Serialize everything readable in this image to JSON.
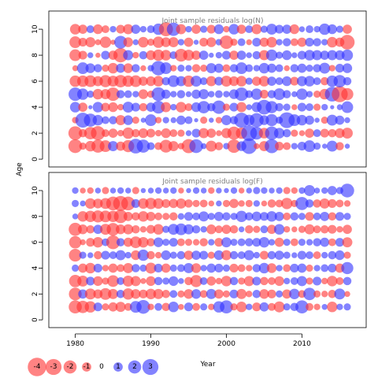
{
  "chart_data": {
    "type": "scatter",
    "subtype": "bubble-residuals",
    "xlabel": "Year",
    "ylabel": "Age",
    "xlim": [
      1976.5,
      2018.5
    ],
    "ylim": [
      -0.6,
      11.4
    ],
    "x_ticks": [
      1980,
      1990,
      2000,
      2010
    ],
    "y_ticks": [
      0,
      2,
      4,
      6,
      8,
      10
    ],
    "years": [
      1980,
      1981,
      1982,
      1983,
      1984,
      1985,
      1986,
      1987,
      1988,
      1989,
      1990,
      1991,
      1992,
      1993,
      1994,
      1995,
      1996,
      1997,
      1998,
      1999,
      2000,
      2001,
      2002,
      2003,
      2004,
      2005,
      2006,
      2007,
      2008,
      2009,
      2010,
      2011,
      2012,
      2013,
      2014,
      2015,
      2016
    ],
    "ages": [
      1,
      2,
      3,
      4,
      5,
      6,
      7,
      8,
      9,
      10
    ],
    "colors": {
      "negative": "#ff3030",
      "positive": "#3030ff",
      "opacity": 0.6
    },
    "legend": {
      "placement": "bottom-left",
      "items": [
        {
          "label": "-4",
          "value": -4
        },
        {
          "label": "-3",
          "value": -3
        },
        {
          "label": "-2",
          "value": -2
        },
        {
          "label": "-1",
          "value": -1
        },
        {
          "label": "0",
          "value": 0
        },
        {
          "label": "1",
          "value": 1
        },
        {
          "label": "2",
          "value": 2
        },
        {
          "label": "3",
          "value": 3
        }
      ]
    },
    "panels": [
      {
        "title": "Joint sample residuals log(N)",
        "residuals_by_age": [
          [
            -2.2,
            -0.6,
            -1.3,
            -2.0,
            -1.6,
            1.2,
            -1.0,
            -1.7,
            2.5,
            2.0,
            0.7,
            -0.7,
            -1.9,
            -1.2,
            -0.5,
            -2.3,
            2.2,
            0.4,
            -1.4,
            -0.8,
            0.5,
            -2.1,
            1.1,
            2.8,
            -0.4,
            -1.2,
            2.3,
            -0.9,
            -0.7,
            0.5,
            0.9,
            1.6,
            0.6,
            0.3,
            1.4,
            -0.8,
            0.3
          ],
          [
            -2.2,
            -0.8,
            -1.8,
            -2.3,
            -0.7,
            -1.0,
            -0.5,
            -1.5,
            -0.8,
            -1.1,
            -0.9,
            -0.5,
            -1.1,
            -0.7,
            -0.6,
            0.4,
            0.9,
            -1.2,
            -1.0,
            -0.4,
            -1.2,
            -2.0,
            -1.5,
            2.9,
            1.9,
            -1.3,
            2.1,
            1.3,
            0.8,
            -0.6,
            -0.4,
            -1.0,
            0.7,
            -0.9,
            -0.8,
            -1.1,
            -1.4
          ],
          [
            -0.5,
            2.6,
            2.0,
            1.3,
            0.7,
            0.8,
            -1.2,
            1.1,
            -0.6,
            0.3,
            1.6,
            -0.5,
            0.5,
            0.4,
            1.0,
            0.7,
            0.2,
            -0.6,
            0.3,
            -0.5,
            1.2,
            0.8,
            2.6,
            1.4,
            2.3,
            1.1,
            1.7,
            0.6,
            2.9,
            1.6,
            1.3,
            1.0,
            0.3,
            -0.6,
            1.4,
            1.0,
            0.4
          ],
          [
            1.3,
            -1.0,
            0.2,
            1.3,
            -0.9,
            -1.1,
            -0.5,
            1.4,
            0.9,
            -0.8,
            1.0,
            1.9,
            -1.2,
            0.5,
            -1.3,
            -0.7,
            1.1,
            1.8,
            0.8,
            2.1,
            -0.6,
            0.9,
            -1.2,
            0.4,
            1.2,
            2.5,
            1.7,
            0.8,
            0.6,
            -0.4,
            0.9,
            0.7,
            -0.6,
            0.5,
            0.2,
            0.4,
            1.6
          ],
          [
            2.1,
            1.5,
            0.6,
            -1.3,
            -1.2,
            -2.1,
            0.8,
            0.7,
            0.5,
            -1.1,
            -0.6,
            2.2,
            1.0,
            0.5,
            0.8,
            0.4,
            1.0,
            1.2,
            0.5,
            0.7,
            0.5,
            1.1,
            2.1,
            0.7,
            1.5,
            -0.9,
            0.8,
            1.6,
            0.8,
            0.4,
            1.5,
            0.5,
            -0.6,
            -1.3,
            2.5,
            -3.0,
            -1.7
          ],
          [
            -1.5,
            -1.5,
            -1.6,
            -1.2,
            -1.7,
            -1.4,
            -1.8,
            -1.5,
            -1.6,
            -1.0,
            -1.1,
            -1.3,
            0.8,
            1.6,
            1.2,
            -1.5,
            1.4,
            0.7,
            -1.2,
            0.9,
            -1.4,
            -1.1,
            -1.3,
            0.6,
            -1.0,
            -1.3,
            1.0,
            0.7,
            1.1,
            -0.9,
            1.2,
            1.3,
            0.7,
            -0.8,
            1.5,
            1.8,
            0.8
          ],
          [
            -0.4,
            1.6,
            1.1,
            0.8,
            -0.6,
            -1.3,
            1.0,
            -1.1,
            0.8,
            -0.4,
            0.5,
            2.4,
            1.6,
            -0.5,
            0.6,
            0.5,
            -0.8,
            -0.6,
            1.2,
            1.0,
            -0.7,
            0.8,
            1.6,
            0.7,
            0.5,
            1.3,
            1.0,
            0.7,
            -0.4,
            0.8,
            1.0,
            0.6,
            0.8,
            1.4,
            -0.5,
            0.9,
            1.1
          ],
          [
            -1.6,
            -0.9,
            0.4,
            -0.3,
            0.9,
            -1.0,
            -2.4,
            1.2,
            -0.5,
            0.8,
            -1.1,
            -1.5,
            -1.3,
            0.7,
            -1.9,
            -1.4,
            -1.0,
            1.0,
            0.3,
            0.5,
            0.9,
            -1.0,
            1.0,
            0.4,
            0.8,
            -1.2,
            1.5,
            0.6,
            1.1,
            0.4,
            0.9,
            1.3,
            1.2,
            1.0,
            1.2,
            1.1,
            1.5
          ],
          [
            -1.6,
            -0.9,
            -1.2,
            -0.4,
            -1.5,
            -0.3,
            1.9,
            -1.1,
            0.4,
            -1.3,
            -0.6,
            -1.5,
            -1.1,
            -1.2,
            0.5,
            -1.0,
            0.3,
            -0.9,
            -1.1,
            0.5,
            -2.1,
            -0.6,
            0.7,
            -0.4,
            0.9,
            -1.0,
            -1.3,
            0.5,
            0.8,
            -0.7,
            -1.0,
            0.9,
            0.8,
            0.5,
            -1.3,
            -1.0,
            -2.5
          ],
          [
            -1.3,
            -1.0,
            0.7,
            -1.1,
            -0.7,
            0.5,
            -0.9,
            -1.2,
            1.0,
            0.5,
            0.7,
            1.5,
            -2.3,
            2.1,
            -1.2,
            0.5,
            -1.0,
            0.6,
            -0.9,
            1.1,
            -0.5,
            1.3,
            -1.0,
            0.7,
            -1.2,
            0.6,
            1.4,
            0.9,
            1.0,
            -1.1,
            0.4,
            0.7,
            0.5,
            1.5,
            1.1,
            0.6,
            -1.0
          ]
        ]
      },
      {
        "title": "Joint sample residuals log(F)",
        "residuals_by_age": [
          [
            -2.0,
            -1.8,
            -1.5,
            0.9,
            -0.6,
            -1.0,
            -1.2,
            -0.7,
            1.6,
            2.2,
            -0.5,
            0.7,
            -0.8,
            1.3,
            -0.4,
            0.9,
            -0.7,
            0.6,
            -0.5,
            1.5,
            2.0,
            -0.6,
            -1.3,
            0.5,
            -0.9,
            1.0,
            -0.7,
            -1.4,
            0.6,
            0.8,
            2.0,
            -0.7,
            -0.5,
            0.4,
            -1.3,
            0.5,
            0.6
          ],
          [
            -1.9,
            1.0,
            -1.4,
            -1.0,
            -1.6,
            -1.2,
            0.8,
            -1.5,
            -1.1,
            -0.9,
            -1.3,
            -1.2,
            -0.8,
            0.7,
            -0.6,
            -1.1,
            1.1,
            -0.7,
            1.2,
            -1.0,
            -0.6,
            0.9,
            -1.2,
            -0.5,
            0.8,
            -1.1,
            -0.9,
            0.6,
            -1.0,
            1.3,
            -0.7,
            1.8,
            -0.6,
            -0.5,
            -0.8,
            1.4,
            -0.4
          ],
          [
            -1.8,
            -1.4,
            0.9,
            -1.1,
            -0.6,
            -1.6,
            0.7,
            -1.4,
            -1.2,
            -0.4,
            -1.1,
            0.8,
            0.6,
            1.1,
            0.4,
            -0.8,
            -1.7,
            0.7,
            -1.0,
            -0.5,
            -1.3,
            0.8,
            -0.6,
            -1.2,
            0.9,
            -0.8,
            -0.7,
            -1.1,
            0.5,
            0.7,
            1.2,
            -0.6,
            0.9,
            -0.5,
            -1.3,
            -0.7,
            0.8
          ],
          [
            0.6,
            -1.0,
            -1.3,
            0.9,
            -0.5,
            -1.0,
            -0.7,
            -1.2,
            0.8,
            0.6,
            -1.4,
            0.9,
            -1.0,
            0.6,
            0.7,
            1.2,
            -1.1,
            0.5,
            1.0,
            0.9,
            0.6,
            -0.9,
            -0.7,
            -0.5,
            0.8,
            1.3,
            -1.1,
            0.5,
            -0.7,
            0.9,
            1.0,
            -0.6,
            0.5,
            0.7,
            0.9,
            -1.0,
            1.7
          ],
          [
            -1.9,
            0.6,
            0.4,
            -0.8,
            0.9,
            0.7,
            1.2,
            0.5,
            -1.1,
            1.5,
            -0.8,
            -0.5,
            1.1,
            0.6,
            0.8,
            -1.0,
            1.0,
            0.9,
            -0.6,
            1.1,
            -1.2,
            0.8,
            0.7,
            1.2,
            0.5,
            -0.9,
            0.8,
            1.0,
            0.6,
            0.4,
            0.9,
            0.7,
            -0.7,
            0.5,
            0.8,
            1.1,
            -0.6
          ],
          [
            -1.8,
            -0.4,
            -0.9,
            -1.3,
            0.7,
            -2.2,
            0.8,
            -1.0,
            -1.6,
            -1.3,
            -0.8,
            1.1,
            0.6,
            0.9,
            -0.7,
            -0.6,
            -0.5,
            -0.8,
            0.5,
            -0.9,
            1.2,
            0.6,
            0.7,
            0.8,
            0.9,
            1.3,
            0.5,
            -1.0,
            0.6,
            -0.7,
            0.6,
            0.5,
            0.8,
            1.0,
            -0.7,
            0.9,
            -1.2
          ],
          [
            -2.0,
            -1.1,
            -0.8,
            1.0,
            -1.4,
            -1.9,
            -1.1,
            -1.2,
            -0.8,
            -0.5,
            -0.9,
            -1.3,
            0.6,
            1.4,
            1.6,
            1.2,
            0.8,
            0.5,
            -1.1,
            -0.7,
            -1.0,
            -0.8,
            0.4,
            -0.8,
            -0.6,
            0.7,
            -1.0,
            1.3,
            -0.5,
            -0.4,
            -0.6,
            -1.2,
            -0.7,
            -0.8,
            -0.9,
            -0.5,
            -1.0
          ],
          [
            0.4,
            -1.3,
            -1.5,
            -1.7,
            -1.6,
            -1.5,
            -2.1,
            -1.0,
            -0.8,
            -1.3,
            -1.0,
            -0.7,
            -0.6,
            -0.8,
            0.5,
            0.9,
            0.7,
            1.2,
            0.6,
            1.0,
            0.8,
            0.6,
            1.5,
            0.8,
            1.1,
            0.9,
            1.3,
            1.0,
            -0.7,
            0.8,
            0.6,
            -0.9,
            0.7,
            1.0,
            -0.8,
            0.9,
            0.6
          ],
          [
            0.6,
            0.4,
            -1.3,
            -1.1,
            -1.4,
            -2.2,
            -2.6,
            -2.2,
            0.9,
            -1.3,
            -1.5,
            -1.3,
            -0.9,
            -1.0,
            -1.2,
            -0.8,
            -0.6,
            -0.7,
            -0.4,
            0.4,
            -0.6,
            -1.0,
            -0.5,
            -0.6,
            0.5,
            -0.4,
            -0.8,
            -0.7,
            -1.5,
            -0.6,
            2.0,
            0.8,
            -0.8,
            -1.2,
            -0.9,
            -0.7,
            -0.5
          ],
          [
            0.5,
            -0.4,
            -0.5,
            0.4,
            -0.6,
            0.4,
            0.5,
            0.4,
            -0.6,
            0.3,
            0.4,
            0.5,
            0.4,
            0.5,
            -0.4,
            0.3,
            0.5,
            0.4,
            -0.5,
            0.4,
            0.3,
            0.5,
            -0.4,
            0.4,
            0.6,
            0.5,
            0.4,
            0.5,
            -0.6,
            -0.5,
            0.5,
            1.4,
            0.4,
            0.5,
            1.0,
            0.6,
            2.2
          ]
        ]
      }
    ]
  }
}
